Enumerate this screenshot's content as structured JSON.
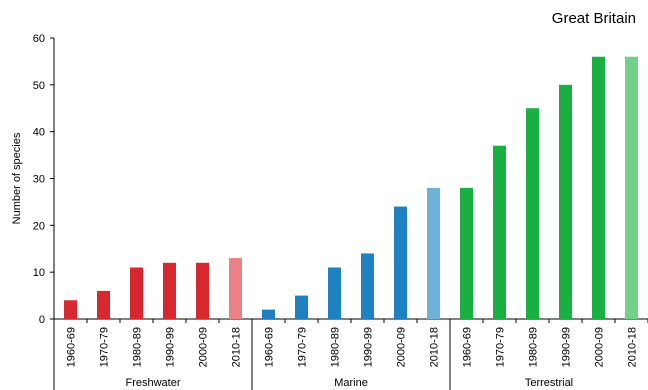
{
  "region_label": "Great Britain",
  "chart_data": {
    "type": "bar",
    "ylabel": "Number of species",
    "ylim": [
      0,
      60
    ],
    "yticks": [
      0,
      10,
      20,
      30,
      40,
      50,
      60
    ],
    "grid": false,
    "groups": [
      {
        "name": "Freshwater",
        "categories": [
          "1960-69",
          "1970-79",
          "1980-89",
          "1990-99",
          "2000-09",
          "2010-18"
        ],
        "values": [
          4,
          6,
          11,
          12,
          12,
          13
        ],
        "color": "#d7272f",
        "last_color": "#e98186"
      },
      {
        "name": "Marine",
        "categories": [
          "1960-69",
          "1970-79",
          "1980-89",
          "1990-99",
          "2000-09",
          "2010-18"
        ],
        "values": [
          2,
          5,
          11,
          14,
          24,
          28
        ],
        "color": "#1f80c2",
        "last_color": "#6fb0d6"
      },
      {
        "name": "Terrestrial",
        "categories": [
          "1960-69",
          "1970-79",
          "1980-89",
          "1990-99",
          "2000-09",
          "2010-18"
        ],
        "values": [
          28,
          37,
          45,
          50,
          56,
          56
        ],
        "color": "#19b041",
        "last_color": "#73d08a"
      }
    ]
  }
}
